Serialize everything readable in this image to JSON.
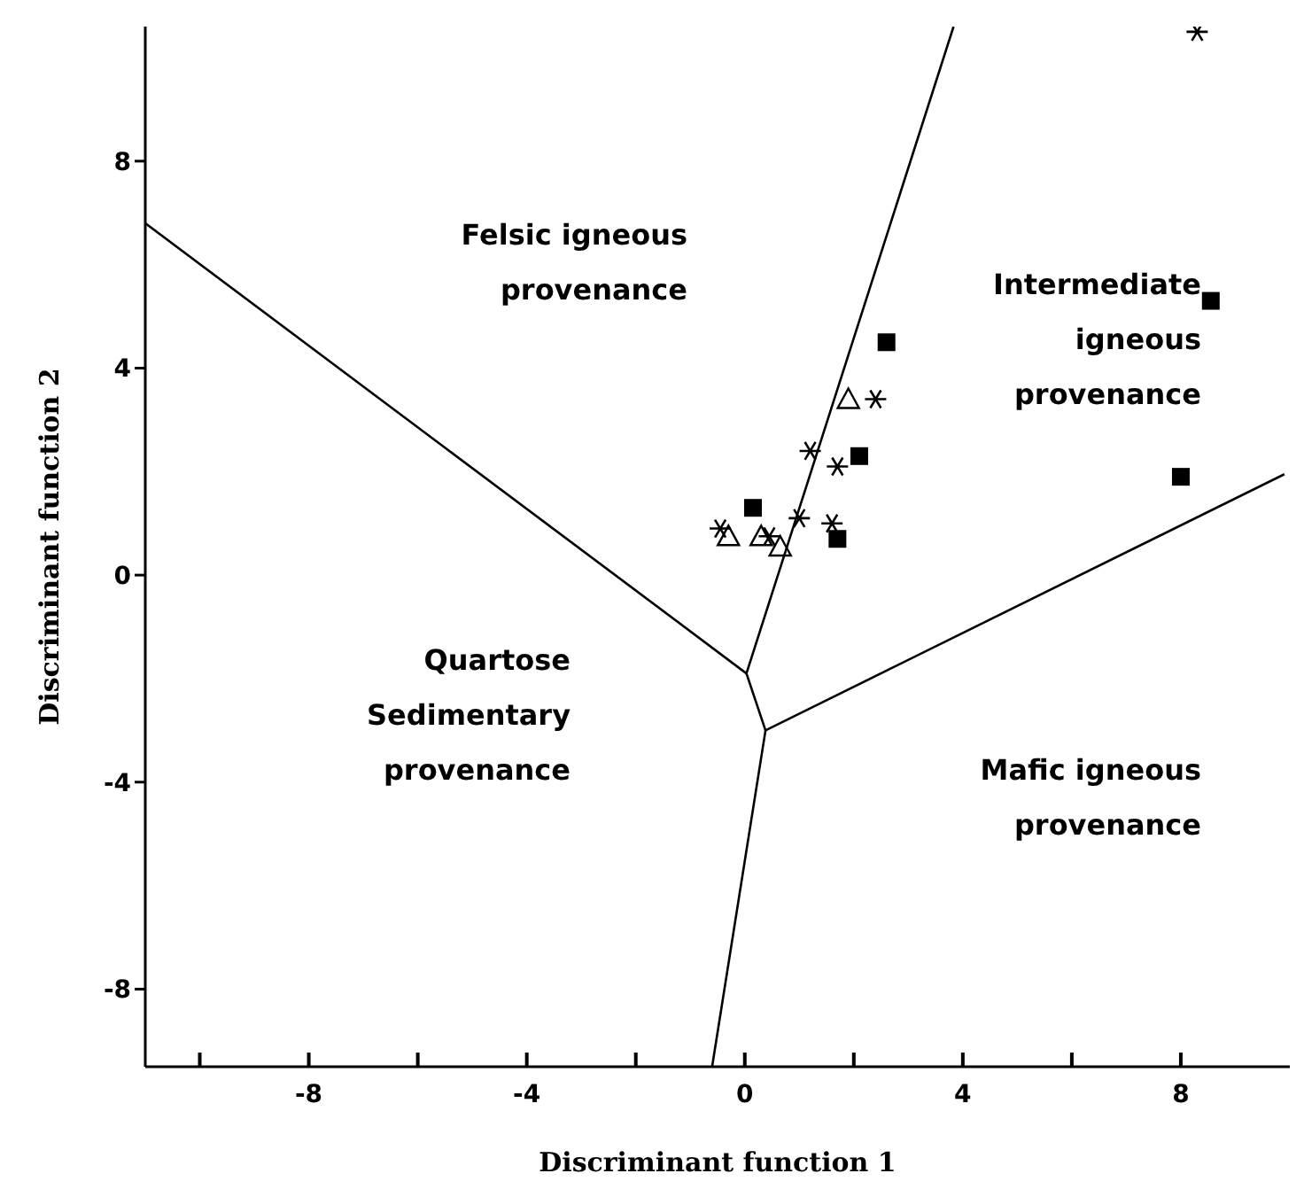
{
  "chart_data": {
    "type": "scatter",
    "xlabel": "Discriminant function 1",
    "ylabel": "Discriminant function 2",
    "xlim": [
      -11,
      10
    ],
    "ylim": [
      -9.5,
      10.6
    ],
    "xticks": [
      {
        "value": -10,
        "label": null
      },
      -8,
      {
        "value": -6,
        "label": null
      },
      -4,
      {
        "value": -2,
        "label": null
      },
      0,
      {
        "value": 2,
        "label": null
      },
      4,
      {
        "value": 6,
        "label": null
      },
      8
    ],
    "yticks": [
      -8,
      -4,
      0,
      4,
      8
    ],
    "grid": false,
    "legend": false,
    "annotations": [
      "Felsic igneous provenance",
      "Intermediate igneous provenance",
      "Quartose Sedimentary provenance",
      "Mafic igneous provenance"
    ],
    "series": [
      {
        "marker": "square",
        "color": "#000000",
        "x": [
          2.6,
          8.55,
          2.1,
          8.0,
          0.15,
          1.7
        ],
        "values": [
          4.5,
          5.3,
          2.3,
          1.9,
          1.3,
          0.7
        ]
      },
      {
        "marker": "triangle",
        "color": "#000000",
        "x": [
          1.9,
          -0.3,
          0.3,
          0.65
        ],
        "values": [
          3.4,
          0.75,
          0.75,
          0.55
        ]
      },
      {
        "marker": "cross",
        "color": "#000000",
        "x": [
          2.4,
          1.2,
          1.7,
          1.0,
          1.6,
          -0.45,
          0.45,
          8.3
        ],
        "values": [
          3.4,
          2.4,
          2.1,
          1.1,
          1.0,
          0.9,
          0.75,
          10.5
        ]
      },
      {
        "type": "line",
        "marker": "none",
        "color": "#000000",
        "x": [
          -11,
          0.03,
          3.83
        ],
        "values": [
          6.8,
          -1.9,
          10.6
        ]
      },
      {
        "type": "line",
        "marker": "none",
        "color": "#000000",
        "x": [
          0.03,
          0.38,
          9.9
        ],
        "values": [
          -1.9,
          -3.0,
          1.95
        ]
      },
      {
        "type": "line",
        "marker": "none",
        "color": "#000000",
        "x": [
          0.38,
          -0.6
        ],
        "values": [
          -3.0,
          -9.5
        ]
      }
    ]
  }
}
